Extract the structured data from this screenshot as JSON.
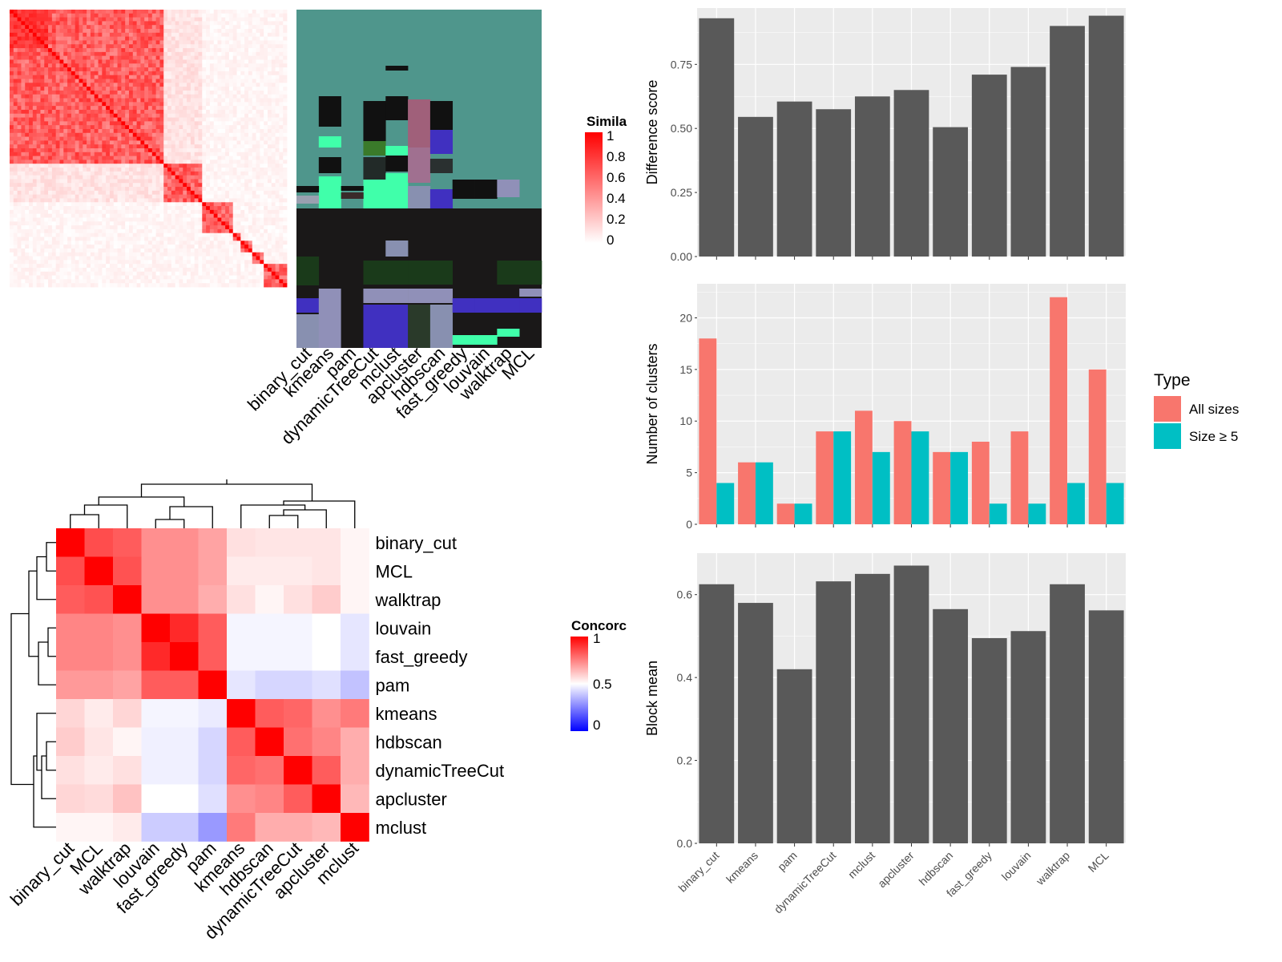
{
  "colors": {
    "panel_bg": "#ebebeb",
    "grid": "#ffffff",
    "bar": "#595959",
    "all_sizes": "#f8766d",
    "size5": "#00bfc4",
    "heat_red": "#ff0000",
    "heat_blue": "#0000ff",
    "membership_bg": "#4f968c"
  },
  "similarity_legend": {
    "title": "Simila",
    "ticks": [
      "1",
      "0.8",
      "0.6",
      "0.4",
      "0.2",
      "0"
    ]
  },
  "concordance_legend": {
    "title": "Concorc",
    "ticks": [
      "1",
      "0.5",
      "0"
    ]
  },
  "membership_methods": [
    "binary_cut",
    "kmeans",
    "pam",
    "dynamicTreeCut",
    "mclust",
    "apcluster",
    "hdbscan",
    "fast_greedy",
    "louvain",
    "walktrap",
    "MCL"
  ],
  "concordance": {
    "row_labels": [
      "binary_cut",
      "MCL",
      "walktrap",
      "louvain",
      "fast_greedy",
      "pam",
      "kmeans",
      "hdbscan",
      "dynamicTreeCut",
      "apcluster",
      "mclust"
    ],
    "col_labels": [
      "binary_cut",
      "MCL",
      "walktrap",
      "louvain",
      "fast_greedy",
      "pam",
      "kmeans",
      "hdbscan",
      "dynamicTreeCut",
      "apcluster",
      "mclust"
    ],
    "values": [
      [
        1.0,
        0.85,
        0.82,
        0.72,
        0.72,
        0.68,
        0.56,
        0.55,
        0.55,
        0.55,
        0.52
      ],
      [
        0.85,
        1.0,
        0.84,
        0.72,
        0.72,
        0.68,
        0.54,
        0.54,
        0.54,
        0.55,
        0.52
      ],
      [
        0.82,
        0.84,
        1.0,
        0.72,
        0.72,
        0.66,
        0.56,
        0.52,
        0.56,
        0.6,
        0.52
      ],
      [
        0.74,
        0.74,
        0.72,
        1.0,
        0.92,
        0.82,
        0.48,
        0.48,
        0.48,
        0.5,
        0.45
      ],
      [
        0.74,
        0.74,
        0.72,
        0.92,
        1.0,
        0.82,
        0.48,
        0.48,
        0.48,
        0.5,
        0.45
      ],
      [
        0.7,
        0.7,
        0.68,
        0.82,
        0.82,
        1.0,
        0.45,
        0.42,
        0.42,
        0.44,
        0.38
      ],
      [
        0.58,
        0.54,
        0.58,
        0.48,
        0.48,
        0.46,
        1.0,
        0.82,
        0.8,
        0.72,
        0.76
      ],
      [
        0.6,
        0.55,
        0.52,
        0.47,
        0.47,
        0.42,
        0.82,
        1.0,
        0.78,
        0.74,
        0.66
      ],
      [
        0.56,
        0.54,
        0.56,
        0.47,
        0.47,
        0.42,
        0.8,
        0.78,
        1.0,
        0.82,
        0.66
      ],
      [
        0.58,
        0.57,
        0.62,
        0.5,
        0.5,
        0.44,
        0.72,
        0.74,
        0.82,
        1.0,
        0.64
      ],
      [
        0.52,
        0.52,
        0.54,
        0.4,
        0.4,
        0.3,
        0.76,
        0.66,
        0.66,
        0.64,
        1.0
      ]
    ]
  },
  "chart_data": [
    {
      "type": "bar",
      "categories": [
        "binary_cut",
        "kmeans",
        "pam",
        "dynamicTreeCut",
        "mclust",
        "apcluster",
        "hdbscan",
        "fast_greedy",
        "louvain",
        "walktrap",
        "MCL"
      ],
      "values": [
        0.93,
        0.545,
        0.605,
        0.575,
        0.625,
        0.65,
        0.505,
        0.71,
        0.74,
        0.9,
        0.94
      ],
      "ylabel": "Difference score",
      "ylim": [
        0,
        0.97
      ],
      "yticks": [
        "0.00",
        "0.25",
        "0.50",
        "0.75"
      ],
      "grid": true
    },
    {
      "type": "bar",
      "categories": [
        "binary_cut",
        "kmeans",
        "pam",
        "dynamicTreeCut",
        "mclust",
        "apcluster",
        "hdbscan",
        "fast_greedy",
        "louvain",
        "walktrap",
        "MCL"
      ],
      "series": [
        {
          "name": "All sizes",
          "values": [
            18,
            6,
            2,
            9,
            11,
            10,
            7,
            8,
            9,
            22,
            15
          ]
        },
        {
          "name": "Size ≥ 5",
          "values": [
            4,
            6,
            2,
            9,
            7,
            9,
            7,
            2,
            2,
            4,
            4
          ]
        }
      ],
      "ylabel": "Number of clusters",
      "ylim": [
        0,
        23.3
      ],
      "yticks": [
        "0",
        "5",
        "10",
        "15",
        "20"
      ],
      "legend": {
        "title": "Type",
        "position": "right"
      },
      "grid": true
    },
    {
      "type": "bar",
      "categories": [
        "binary_cut",
        "kmeans",
        "pam",
        "dynamicTreeCut",
        "mclust",
        "apcluster",
        "hdbscan",
        "fast_greedy",
        "louvain",
        "walktrap",
        "MCL"
      ],
      "values": [
        0.625,
        0.58,
        0.42,
        0.632,
        0.65,
        0.67,
        0.565,
        0.495,
        0.512,
        0.625,
        0.562
      ],
      "ylabel": "Block mean",
      "ylim": [
        0,
        0.7
      ],
      "yticks": [
        "0.0",
        "0.2",
        "0.4",
        "0.6"
      ],
      "grid": true
    }
  ]
}
